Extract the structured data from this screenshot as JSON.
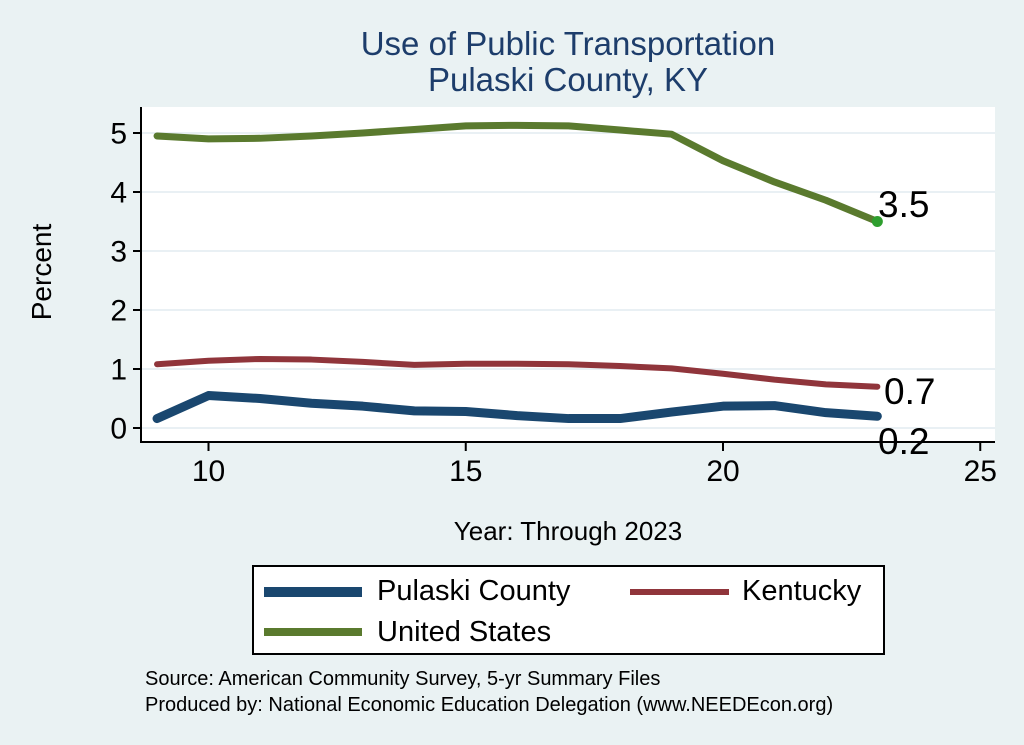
{
  "title": {
    "line1": "Use of Public Transportation",
    "line2": "Pulaski County, KY"
  },
  "y_axis": {
    "title": "Percent",
    "tick_labels": [
      "0",
      "1",
      "2",
      "3",
      "4",
      "5"
    ]
  },
  "x_axis": {
    "title": "Year: Through 2023",
    "tick_labels": [
      "10",
      "15",
      "20",
      "25"
    ]
  },
  "end_labels": {
    "united_states": "3.5",
    "kentucky": "0.7",
    "pulaski_county": "0.2"
  },
  "legend": {
    "items": [
      {
        "label": "Pulaski County",
        "color": "#1a476f",
        "swatch_thickness": 10
      },
      {
        "label": "Kentucky",
        "color": "#90353b",
        "swatch_thickness": 6
      },
      {
        "label": "United States",
        "color": "#5a7a2e",
        "swatch_thickness": 8
      }
    ]
  },
  "footer": {
    "line1": "Source: American Community Survey, 5-yr Summary Files",
    "line2": "Produced by: National Economic Education Delegation (www.NEEDEcon.org)"
  },
  "colors": {
    "background": "#eaf2f3",
    "plot_background": "#ffffff",
    "gridline": "#e2ecf1",
    "axis": "#000000",
    "title_text": "#1d3d6b",
    "end_marker_green": "#2e9e2e"
  },
  "chart_data": {
    "type": "line",
    "title": "Use of Public Transportation — Pulaski County, KY",
    "xlabel": "Year: Through 2023",
    "ylabel": "Percent",
    "x": [
      9,
      10,
      11,
      12,
      13,
      14,
      15,
      16,
      17,
      18,
      19,
      20,
      21,
      22,
      23
    ],
    "x_ticks": [
      10,
      15,
      20,
      25
    ],
    "y_ticks": [
      0,
      1,
      2,
      3,
      4,
      5
    ],
    "xlim": [
      8.7,
      25.3
    ],
    "ylim": [
      -0.25,
      5.45
    ],
    "grid": true,
    "legend_position": "bottom",
    "series": [
      {
        "name": "Pulaski County",
        "color": "#1a476f",
        "line_width": 9,
        "values": [
          0.16,
          0.55,
          0.5,
          0.42,
          0.37,
          0.29,
          0.28,
          0.21,
          0.16,
          0.16,
          0.27,
          0.37,
          0.38,
          0.26,
          0.2
        ]
      },
      {
        "name": "Kentucky",
        "color": "#90353b",
        "line_width": 6,
        "values": [
          1.08,
          1.14,
          1.17,
          1.16,
          1.12,
          1.07,
          1.09,
          1.09,
          1.08,
          1.05,
          1.01,
          0.92,
          0.82,
          0.74,
          0.7
        ]
      },
      {
        "name": "United States",
        "color": "#5a7a2e",
        "line_width": 7,
        "values": [
          4.95,
          4.9,
          4.91,
          4.95,
          5.0,
          5.06,
          5.12,
          5.13,
          5.12,
          5.05,
          4.98,
          4.53,
          4.17,
          3.86,
          3.5
        ]
      }
    ],
    "end_point_marker": {
      "series": "United States",
      "x": 23,
      "y": 3.5,
      "color": "#2e9e2e",
      "radius": 5.5
    },
    "end_value_labels": {
      "United States": 3.5,
      "Kentucky": 0.7,
      "Pulaski County": 0.2
    }
  }
}
